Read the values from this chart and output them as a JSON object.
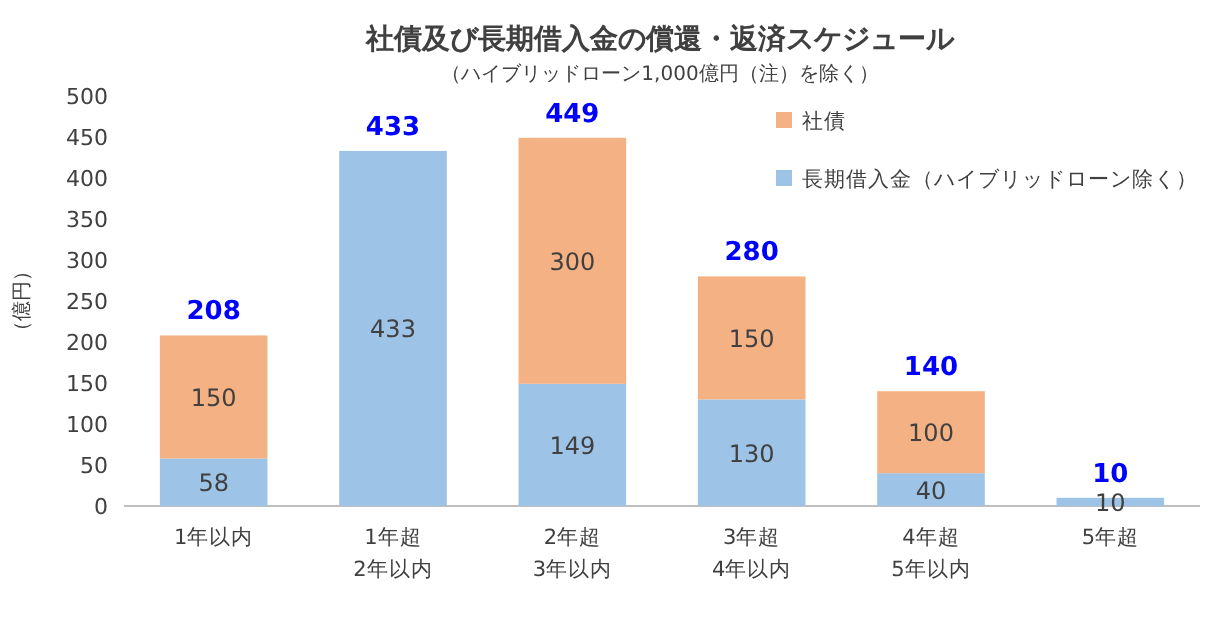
{
  "chart_data": {
    "type": "bar",
    "title": "社債及び長期借入金の償還・返済スケジュール",
    "subtitle": "（ハイブリッドローン1,000億円（注）を除く）",
    "ylabel": "（億円）",
    "categories": [
      "1年以内",
      "1年超\n2年以内",
      "2年超\n3年以内",
      "3年超\n4年以内",
      "4年超\n5年以内",
      "5年超"
    ],
    "stacked": true,
    "series": [
      {
        "name": "長期借入金（ハイブリッドローン除く）",
        "color": "#9dc3e6",
        "values": [
          58,
          433,
          149,
          130,
          40,
          10
        ]
      },
      {
        "name": "社債",
        "color": "#f4b183",
        "values": [
          150,
          null,
          300,
          150,
          100,
          null
        ]
      }
    ],
    "totals": [
      "208",
      "433",
      "449",
      "280",
      "140",
      "10"
    ],
    "data_labels": true,
    "ylim": [
      0,
      500
    ],
    "yticks": [
      0,
      50,
      100,
      150,
      200,
      250,
      300,
      350,
      400,
      450,
      500
    ],
    "legend": "top right"
  }
}
